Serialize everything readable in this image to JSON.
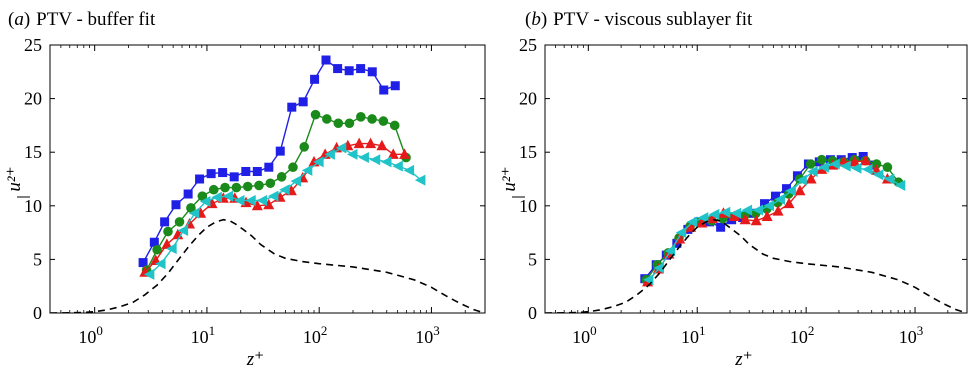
{
  "colors": {
    "s1": "#1f1fe6",
    "s2": "#1a8a1a",
    "s3": "#e61a1a",
    "s4": "#1fc3c8",
    "reference": "#000000"
  },
  "chart_data": [
    {
      "type": "line",
      "panel_label": "(a)",
      "title": "PTV - buffer fit",
      "xlabel": "z⁺",
      "ylabel": "u²⁺",
      "x_scale": "log",
      "xlim": [
        0.4,
        3000
      ],
      "ylim": [
        0,
        25
      ],
      "x_ticks": [
        {
          "value": 1,
          "exp": "0"
        },
        {
          "value": 10,
          "exp": "1"
        },
        {
          "value": 100,
          "exp": "2"
        },
        {
          "value": 1000,
          "exp": "3"
        }
      ],
      "y_ticks": [
        "0",
        "5",
        "10",
        "15",
        "20",
        "25"
      ],
      "grid": false,
      "legend": "none",
      "series": [
        {
          "marker": "square",
          "color": "#1f1fe6",
          "x": [
            2.7,
            3.4,
            4.2,
            5.3,
            6.8,
            8.6,
            10.9,
            13.8,
            17.5,
            22.2,
            28.1,
            35.6,
            45,
            57,
            72,
            91,
            115,
            146,
            185,
            234,
            297,
            376,
            476
          ],
          "y": [
            4.7,
            6.6,
            8.5,
            10.1,
            11.1,
            12.5,
            13,
            13.1,
            12.7,
            13.2,
            13.2,
            13.6,
            15.1,
            19.2,
            19.7,
            21.8,
            23.6,
            22.8,
            22.6,
            22.8,
            22.5,
            20.8,
            21.2
          ]
        },
        {
          "marker": "circle",
          "color": "#1a8a1a",
          "x": [
            2.9,
            3.6,
            4.5,
            5.7,
            7.2,
            9.1,
            11.5,
            14.5,
            18.3,
            23.1,
            29.1,
            36.7,
            46.3,
            58.4,
            73.6,
            92.8,
            117,
            148,
            186,
            235,
            296,
            373,
            471,
            594
          ],
          "y": [
            4,
            5.9,
            7.6,
            8.5,
            9.8,
            10.9,
            11.5,
            11.7,
            11.7,
            11.8,
            11.9,
            12.1,
            12.7,
            13.6,
            15.5,
            18.5,
            18.1,
            17.7,
            17.7,
            18.3,
            18.1,
            17.9,
            17.5,
            14.5
          ]
        },
        {
          "marker": "triangle-up",
          "color": "#e61a1a",
          "x": [
            2.8,
            3.5,
            4.4,
            5.5,
            7,
            8.8,
            11.1,
            14,
            17.7,
            22.3,
            28.1,
            35.5,
            44.8,
            56.5,
            71.3,
            89.9,
            113,
            143,
            180,
            227,
            287,
            362,
            457,
            576
          ],
          "y": [
            3.8,
            4.9,
            6.4,
            7.3,
            8.3,
            9.3,
            10.2,
            10.7,
            10.7,
            10.3,
            10,
            10.1,
            10.8,
            11.4,
            12.6,
            14.1,
            14.8,
            15.4,
            15.6,
            15.8,
            15.8,
            15.6,
            14.8,
            14.8
          ]
        },
        {
          "marker": "triangle-left",
          "color": "#1fc3c8",
          "x": [
            3.1,
            3.9,
            4.9,
            6.2,
            7.8,
            9.8,
            12.4,
            15.6,
            19.7,
            24.8,
            31.3,
            39.5,
            49.8,
            62.8,
            79.2,
            99.9,
            126,
            159,
            200,
            253,
            319,
            402,
            507,
            639,
            806
          ],
          "y": [
            3.6,
            4.6,
            6,
            7.7,
            9.3,
            10.4,
            10.8,
            10.9,
            10.5,
            10.5,
            10.5,
            10.9,
            11.5,
            12.3,
            13.3,
            14.1,
            14.8,
            15.4,
            14.8,
            14.5,
            14.3,
            14.1,
            13.7,
            13.3,
            12.4
          ]
        },
        {
          "marker": "none",
          "dashed": true,
          "color": "#000000",
          "x": [
            0.4,
            0.6,
            0.8,
            1,
            1.3,
            1.7,
            2.2,
            2.8,
            3.6,
            4.5,
            5.5,
            7,
            8.5,
            10,
            12,
            14,
            16,
            18,
            21,
            25,
            30,
            40,
            50,
            70,
            100,
            200,
            400,
            700,
            1000,
            1400,
            1800,
            2400,
            3000
          ],
          "y": [
            0,
            0.02,
            0.05,
            0.12,
            0.3,
            0.6,
            1,
            1.7,
            2.6,
            3.7,
            4.9,
            6.3,
            7.3,
            8,
            8.5,
            8.7,
            8.6,
            8.3,
            7.8,
            7.2,
            6.4,
            5.5,
            5.1,
            4.8,
            4.6,
            4.3,
            3.8,
            3.1,
            2.4,
            1.5,
            0.9,
            0.3,
            0
          ]
        }
      ]
    },
    {
      "type": "line",
      "panel_label": "(b)",
      "title": "PTV - viscous sublayer fit",
      "xlabel": "z⁺",
      "ylabel": "u²⁺",
      "x_scale": "log",
      "xlim": [
        0.4,
        3000
      ],
      "ylim": [
        0,
        25
      ],
      "x_ticks": [
        {
          "value": 1,
          "exp": "0"
        },
        {
          "value": 10,
          "exp": "1"
        },
        {
          "value": 100,
          "exp": "2"
        },
        {
          "value": 1000,
          "exp": "3"
        }
      ],
      "y_ticks": [
        "0",
        "5",
        "10",
        "15",
        "20",
        "25"
      ],
      "grid": false,
      "legend": "none",
      "series": [
        {
          "marker": "square",
          "color": "#1f1fe6",
          "x": [
            3.3,
            4.2,
            5.2,
            6.5,
            8.2,
            10.3,
            13,
            16.4,
            20.7,
            26.1,
            32.9,
            41.5,
            52.3,
            66,
            83.2,
            105,
            132,
            167,
            210,
            265,
            334,
            421
          ],
          "y": [
            3.2,
            4.5,
            5.4,
            6.5,
            7.8,
            8.5,
            8.5,
            8,
            8.7,
            8.9,
            9.3,
            10.2,
            10.9,
            11.6,
            12.8,
            13.9,
            14.1,
            14.3,
            14.3,
            14.5,
            14.6,
            13.8
          ]
        },
        {
          "marker": "circle",
          "color": "#1a8a1a",
          "x": [
            3.4,
            4.3,
            5.4,
            6.8,
            8.6,
            10.8,
            13.6,
            17.2,
            21.7,
            27.3,
            34.5,
            43.5,
            54.8,
            69.1,
            87.2,
            110,
            139,
            175,
            221,
            278,
            351,
            443,
            558,
            704
          ],
          "y": [
            3.1,
            4.5,
            5.6,
            7,
            8.1,
            8.5,
            8.6,
            8.8,
            9,
            9.1,
            9.3,
            9.7,
            10.3,
            11.1,
            12.5,
            13.9,
            14.3,
            14.2,
            14.1,
            14.3,
            14.2,
            13.9,
            13.6,
            12.2
          ]
        },
        {
          "marker": "triangle-up",
          "color": "#e61a1a",
          "x": [
            3.5,
            4.4,
            5.5,
            6.9,
            8.7,
            11,
            13.8,
            17.4,
            21.9,
            27.6,
            34.8,
            43.8,
            55.2,
            69.6,
            87.7,
            111,
            139,
            176,
            221,
            279,
            351,
            443,
            558
          ],
          "y": [
            2.9,
            4.1,
            5.5,
            6.9,
            8,
            8.4,
            8.8,
            9.3,
            9,
            8.7,
            8.6,
            9,
            9.5,
            10.2,
            11.4,
            12.5,
            13.4,
            13.8,
            14.1,
            14.1,
            14.2,
            13.3,
            12.5
          ]
        },
        {
          "marker": "triangle-left",
          "color": "#1fc3c8",
          "x": [
            3.6,
            4.5,
            5.7,
            7.2,
            9.1,
            11.5,
            14.5,
            18.3,
            23,
            29,
            36.6,
            46.1,
            58.1,
            73.2,
            92.3,
            116,
            147,
            185,
            233,
            293,
            370,
            466,
            587,
            740
          ],
          "y": [
            3.1,
            4.2,
            5.8,
            7.5,
            8.5,
            8.9,
            9.2,
            9.4,
            9.3,
            9.6,
            9.6,
            10,
            10.6,
            11.4,
            12.4,
            13.2,
            13.6,
            13.9,
            13.7,
            13.5,
            13.4,
            12.9,
            12.5,
            11.9
          ]
        },
        {
          "marker": "none",
          "dashed": true,
          "color": "#000000",
          "x": [
            0.4,
            0.6,
            0.8,
            1,
            1.3,
            1.7,
            2.2,
            2.8,
            3.6,
            4.5,
            5.5,
            7,
            8.5,
            10,
            12,
            14,
            16,
            18,
            21,
            25,
            30,
            40,
            50,
            70,
            100,
            200,
            400,
            700,
            1000,
            1400,
            1800,
            2400,
            3000
          ],
          "y": [
            0,
            0.02,
            0.05,
            0.12,
            0.3,
            0.6,
            1,
            1.7,
            2.6,
            3.7,
            4.9,
            6.3,
            7.3,
            8,
            8.5,
            8.7,
            8.6,
            8.3,
            7.8,
            7.2,
            6.4,
            5.5,
            5.1,
            4.8,
            4.6,
            4.3,
            3.8,
            3.1,
            2.4,
            1.5,
            0.9,
            0.3,
            0
          ]
        }
      ]
    }
  ]
}
